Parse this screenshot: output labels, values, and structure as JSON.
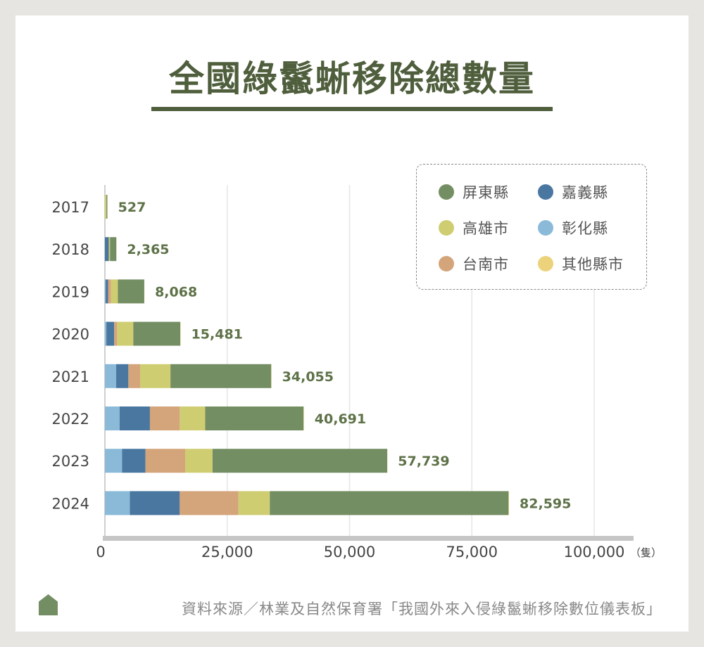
{
  "title": "全國綠鬣蜥移除總數量",
  "source": "資料來源／林業及自然保育署「我國外來入侵綠鬣蜥移除數位儀表板」",
  "chart_data": {
    "type": "bar",
    "orientation": "horizontal",
    "stacked": true,
    "title": "全國綠鬣蜥移除總數量",
    "xlabel": "",
    "ylabel": "",
    "unit": "（隻）",
    "xlim": [
      0,
      108000
    ],
    "xticks": [
      0,
      25000,
      50000,
      75000,
      100000
    ],
    "xtick_labels": [
      "0",
      "25,000",
      "50,000",
      "75,000",
      "100,000"
    ],
    "categories": [
      "2017",
      "2018",
      "2019",
      "2020",
      "2021",
      "2022",
      "2023",
      "2024"
    ],
    "series": [
      {
        "name": "彰化縣",
        "color": "#8bbad9",
        "values": [
          0,
          0,
          150,
          300,
          2300,
          3000,
          3500,
          5100
        ]
      },
      {
        "name": "嘉義縣",
        "color": "#4a77a0",
        "values": [
          0,
          800,
          500,
          1600,
          2500,
          6200,
          4800,
          10200
        ]
      },
      {
        "name": "台南市",
        "color": "#d4a47a",
        "values": [
          0,
          0,
          600,
          600,
          2400,
          6100,
          8100,
          12000
        ]
      },
      {
        "name": "高雄市",
        "color": "#cfcd72",
        "values": [
          300,
          250,
          1400,
          3300,
          6200,
          5200,
          5600,
          6400
        ]
      },
      {
        "name": "屏東縣",
        "color": "#748e63",
        "values": [
          200,
          1300,
          5400,
          9600,
          20600,
          20100,
          35700,
          48800
        ]
      },
      {
        "name": "其他縣市",
        "color": "#ecd27a",
        "values": [
          27,
          15,
          18,
          81,
          55,
          91,
          39,
          95
        ]
      }
    ],
    "totals": [
      527,
      2365,
      8068,
      15481,
      34055,
      40691,
      57739,
      82595
    ],
    "total_labels": [
      "527",
      "2,365",
      "8,068",
      "15,481",
      "34,055",
      "40,691",
      "57,739",
      "82,595"
    ],
    "legend": {
      "position": "top-right",
      "order": [
        "屏東縣",
        "嘉義縣",
        "高雄市",
        "彰化縣",
        "台南市",
        "其他縣市"
      ]
    }
  }
}
